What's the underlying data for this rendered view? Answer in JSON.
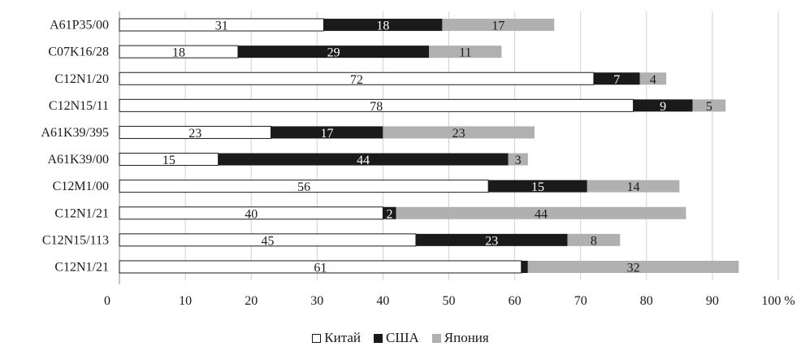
{
  "chart_data": {
    "type": "bar",
    "orientation": "horizontal",
    "stacked": true,
    "categories": [
      "A61P35/00",
      "C07K16/28",
      "C12N1/20",
      "C12N15/11",
      "A61K39/395",
      "A61K39/00",
      "C12M1/00",
      "C12N1/21",
      "C12N15/113",
      "C12N1/21"
    ],
    "series": [
      {
        "name": "Китай",
        "color": "#ffffff",
        "values": [
          31,
          18,
          72,
          78,
          23,
          15,
          56,
          40,
          45,
          61
        ]
      },
      {
        "name": "США",
        "color": "#1a1a1a",
        "values": [
          18,
          29,
          7,
          9,
          17,
          44,
          15,
          2,
          23,
          1
        ]
      },
      {
        "name": "Япония",
        "color": "#b0b0b0",
        "values": [
          17,
          11,
          4,
          5,
          23,
          3,
          14,
          44,
          8,
          32
        ]
      }
    ],
    "data_labels": [
      [
        "31",
        "18",
        "17"
      ],
      [
        "18",
        "29",
        "11"
      ],
      [
        "72",
        "7",
        "4"
      ],
      [
        "78",
        "9",
        "5"
      ],
      [
        "23",
        "17",
        "23"
      ],
      [
        "15",
        "44",
        "3"
      ],
      [
        "56",
        "15",
        "14"
      ],
      [
        "40",
        "2",
        "44"
      ],
      [
        "45",
        "23",
        "8"
      ],
      [
        "61",
        "",
        "32"
      ]
    ],
    "xlim": [
      0,
      100
    ],
    "xticks": [
      "0",
      "10",
      "20",
      "30",
      "40",
      "50",
      "60",
      "70",
      "80",
      "90",
      "100"
    ],
    "x_tick_suffix": "%",
    "grid": true,
    "legend_position": "bottom",
    "title": "",
    "xlabel": "",
    "ylabel": ""
  }
}
